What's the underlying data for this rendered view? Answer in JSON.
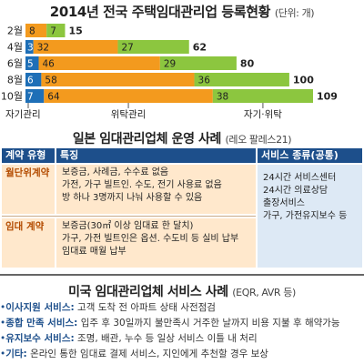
{
  "chart_data": {
    "type": "bar",
    "stacked": true,
    "orientation": "horizontal",
    "title": "2014년 전국 주택임대관리업 등록현황",
    "unit": "(단위: 개)",
    "categories": [
      "2월",
      "4월",
      "6월",
      "8월",
      "10월"
    ],
    "series": [
      {
        "name": "자기관리",
        "color": "#1e6fb7",
        "values": [
          0,
          3,
          5,
          6,
          7
        ]
      },
      {
        "name": "위탁관리",
        "color": "#f39a1e",
        "values": [
          8,
          32,
          46,
          58,
          64
        ]
      },
      {
        "name": "자기·위탁",
        "color": "#8cc63f",
        "values": [
          7,
          27,
          29,
          36,
          38
        ]
      }
    ],
    "totals": [
      15,
      62,
      80,
      100,
      109
    ],
    "xlim": [
      0,
      109
    ],
    "grid": false
  },
  "japan": {
    "title": "일본 임대관리업체 운영 사례",
    "subtitle": "(레오 팔레스21)",
    "headers": {
      "type": "계약 유형",
      "feature": "특징",
      "service": "서비스 종류(공통)"
    },
    "rows": [
      {
        "type": "월단위계약",
        "lines": [
          "보증금, 사례금, 수수료 없음",
          "가전, 가구 빌트인. 수도, 전기 사용료 없음",
          "방 하나 3명까지 나눠 사용할 수 있음"
        ]
      },
      {
        "type": "임대 계약",
        "lines": [
          "보증금(30㎡ 이상 임대료 한 달치)",
          "가구, 가전 빌트인은 옵션. 수도비 등 실비 납부",
          "임대료 매월 납부"
        ]
      }
    ],
    "services": [
      "24시간 서비스센터",
      "24시간 의료상담",
      "출장서비스",
      "가구, 가전유지보수 등"
    ]
  },
  "usa": {
    "title": "미국 임대관리업체 서비스 사례",
    "subtitle": "(EQR, AVR 등)",
    "items": [
      {
        "label": "이사지원 서비스:",
        "text": "고객 도착 전 아파트 상태 사전점검"
      },
      {
        "label": "종합 만족 서비스:",
        "text": "입주 후 30일까지 불만족시 거주한 날까지 비용 지불 후 해약가능"
      },
      {
        "label": "유지보수 서비스:",
        "text": "조명, 배관, 누수 등 일상 서비스 이틀 내 처리"
      },
      {
        "label": "기타:",
        "text": "온라인 통한 임대료 결제 서비스, 지인에게 추천할 경우 보상"
      }
    ]
  }
}
